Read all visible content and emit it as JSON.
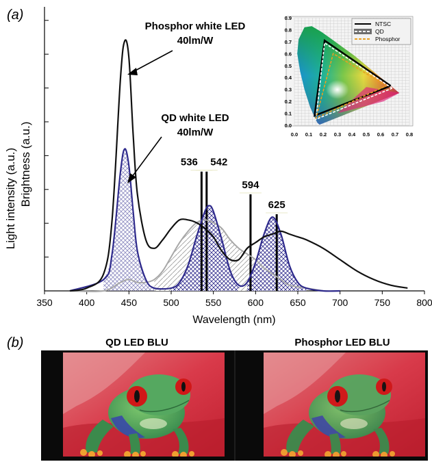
{
  "figure": {
    "panel_a_label": "(a)",
    "panel_b_label": "(b)",
    "y_axis_label_1": "Light intensity (a.u.)",
    "y_axis_label_2": "Brightness (a.u.)",
    "annotation_phosphor_line1": "Phosphor white LED",
    "annotation_phosphor_line2": "40lm/W",
    "annotation_qd_line1": "QD white LED",
    "annotation_qd_line2": "40lm/W",
    "panel_b_left_title": "QD LED BLU",
    "panel_b_right_title": "Phosphor LED BLU"
  },
  "chart_data": [
    {
      "type": "line",
      "xlabel": "Wavelength (nm)",
      "ylabel": "Light intensity (a.u.) / Brightness (a.u.)",
      "xlim": [
        350,
        800
      ],
      "ylim": [
        0,
        1.0
      ],
      "x_ticks": [
        350,
        400,
        450,
        500,
        550,
        600,
        650,
        700,
        750,
        800
      ],
      "marker_lines": [
        {
          "x": 536,
          "label": "536",
          "height": 0.42
        },
        {
          "x": 542,
          "label": "542",
          "height": 0.42
        },
        {
          "x": 594,
          "label": "594",
          "height": 0.34
        },
        {
          "x": 625,
          "label": "625",
          "height": 0.27
        }
      ],
      "series": [
        {
          "color": "#111111",
          "x": [
            380,
            400,
            420,
            430,
            440,
            445,
            450,
            455,
            460,
            470,
            480,
            490,
            500,
            510,
            520,
            530,
            540,
            550,
            560,
            570,
            580,
            590,
            600,
            610,
            620,
            630,
            640,
            650,
            660,
            680,
            700,
            720,
            740,
            760,
            780
          ],
          "y": [
            0.0,
            0.01,
            0.06,
            0.25,
            0.75,
            0.88,
            0.82,
            0.55,
            0.34,
            0.18,
            0.15,
            0.18,
            0.22,
            0.25,
            0.25,
            0.24,
            0.22,
            0.19,
            0.14,
            0.11,
            0.11,
            0.15,
            0.17,
            0.19,
            0.2,
            0.21,
            0.2,
            0.19,
            0.18,
            0.15,
            0.11,
            0.07,
            0.04,
            0.02,
            0.01
          ]
        },
        {
          "color": "#2e2a8c",
          "x": [
            380,
            420,
            430,
            440,
            445,
            450,
            455,
            460,
            470,
            480,
            500,
            510,
            520,
            530,
            540,
            545,
            550,
            560,
            570,
            580,
            590,
            600,
            610,
            620,
            630,
            640,
            650,
            660,
            680,
            700
          ],
          "y": [
            0.0,
            0.04,
            0.13,
            0.42,
            0.5,
            0.44,
            0.28,
            0.14,
            0.04,
            0.01,
            0.01,
            0.03,
            0.09,
            0.19,
            0.28,
            0.3,
            0.28,
            0.18,
            0.07,
            0.02,
            0.03,
            0.1,
            0.2,
            0.26,
            0.2,
            0.09,
            0.03,
            0.01,
            0.0,
            0.0
          ]
        },
        {
          "color": "#a8a8a8",
          "x": [
            380,
            420,
            440,
            450,
            460,
            470,
            480,
            490,
            500,
            510,
            520,
            530,
            540,
            550,
            560,
            570,
            580,
            590,
            600,
            610,
            620,
            630,
            640,
            660,
            680
          ],
          "y": [
            0.0,
            0.0,
            0.03,
            0.04,
            0.03,
            0.03,
            0.04,
            0.07,
            0.12,
            0.17,
            0.21,
            0.24,
            0.25,
            0.24,
            0.22,
            0.18,
            0.15,
            0.13,
            0.11,
            0.08,
            0.06,
            0.04,
            0.02,
            0.01,
            0.0
          ]
        }
      ]
    },
    {
      "type": "scatter",
      "xlim": [
        0.0,
        0.8
      ],
      "ylim": [
        0.0,
        0.9
      ],
      "x_ticks": [
        0.0,
        0.1,
        0.2,
        0.3,
        0.4,
        0.5,
        0.6,
        0.7,
        0.8
      ],
      "y_ticks": [
        0.0,
        0.1,
        0.2,
        0.3,
        0.4,
        0.5,
        0.6,
        0.7,
        0.8,
        0.9
      ],
      "legend_position": "top-right",
      "series": [
        {
          "name": "NTSC",
          "color": "#000000",
          "x": [
            0.67,
            0.21,
            0.14,
            0.67
          ],
          "y": [
            0.33,
            0.71,
            0.08,
            0.33
          ]
        },
        {
          "name": "QD",
          "color": "#ffffff",
          "x": [
            0.68,
            0.21,
            0.15,
            0.68
          ],
          "y": [
            0.31,
            0.69,
            0.05,
            0.31
          ]
        },
        {
          "name": "Phosphor",
          "color": "#e8a020",
          "x": [
            0.64,
            0.27,
            0.15,
            0.64
          ],
          "y": [
            0.33,
            0.6,
            0.06,
            0.33
          ]
        }
      ]
    }
  ]
}
